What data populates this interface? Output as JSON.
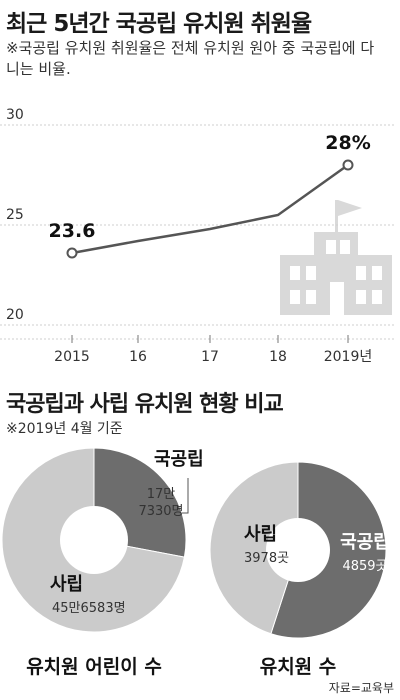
{
  "line_section": {
    "title": "최근 5년간 국공립 유치원 취원율",
    "note": "※국공립 유치원 취원율은 전체 유치원 원아 중 국공립에 다니는 비율."
  },
  "compare_section": {
    "title": "국공립과 사립 유치원 현황 비교",
    "note": "※2019년 4월 기준"
  },
  "source": "자료=교육부",
  "chart_data": [
    {
      "type": "line",
      "x": [
        "2015",
        "16",
        "17",
        "18",
        "2019년"
      ],
      "values": [
        23.6,
        24.2,
        24.8,
        25.5,
        28.0
      ],
      "y_ticks": [
        "30",
        "25",
        "20"
      ],
      "ylim": [
        20,
        30
      ],
      "data_labels": [
        "23.6",
        "",
        "",
        "",
        "28%"
      ],
      "grid": true,
      "colors": {
        "line": "#555555",
        "marker_fill": "#ffffff"
      }
    },
    {
      "type": "pie",
      "caption": "유치원 어린이 수",
      "slices": [
        {
          "name": "국공립",
          "value_text": "17만 7330명",
          "value": 177330,
          "color": "#6d6d6d"
        },
        {
          "name": "사립",
          "value_text": "45만6583명",
          "value": 456583,
          "color": "#cbcbcb"
        }
      ]
    },
    {
      "type": "pie",
      "caption": "유치원 수",
      "slices": [
        {
          "name": "국공립",
          "value_text": "4859곳",
          "value": 4859,
          "color": "#6d6d6d"
        },
        {
          "name": "사립",
          "value_text": "3978곳",
          "value": 3978,
          "color": "#cbcbcb"
        }
      ]
    }
  ]
}
